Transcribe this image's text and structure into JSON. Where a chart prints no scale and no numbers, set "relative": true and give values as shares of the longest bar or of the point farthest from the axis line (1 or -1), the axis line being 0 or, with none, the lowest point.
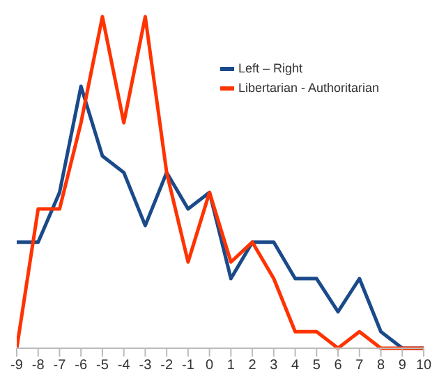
{
  "chart_data": {
    "type": "line",
    "relative": true,
    "x": [
      -9,
      -8,
      -7,
      -6,
      -5,
      -4,
      -3,
      -2,
      -1,
      0,
      1,
      2,
      3,
      4,
      5,
      6,
      7,
      8,
      9,
      10
    ],
    "xlim": [
      -9,
      10
    ],
    "xticks": [
      -9,
      -8,
      -7,
      -6,
      -5,
      -4,
      -3,
      -2,
      -1,
      0,
      1,
      2,
      3,
      4,
      5,
      6,
      7,
      8,
      9,
      10
    ],
    "legend": "top right",
    "grid": false,
    "marker": "none",
    "series": [
      {
        "name": "Left – Right",
        "color": "#1a4a8a",
        "values": [
          0.32,
          0.32,
          0.47,
          0.79,
          0.58,
          0.53,
          0.37,
          0.53,
          0.42,
          0.47,
          0.21,
          0.32,
          0.32,
          0.21,
          0.21,
          0.11,
          0.21,
          0.05,
          0,
          0
        ]
      },
      {
        "name": "Libertarian - Authoritarian",
        "color": "#ff3300",
        "values": [
          0,
          0.42,
          0.42,
          0.68,
          1,
          0.68,
          1,
          0.53,
          0.26,
          0.47,
          0.26,
          0.32,
          0.21,
          0.05,
          0.05,
          0,
          0.05,
          0,
          0,
          0
        ]
      }
    ]
  }
}
